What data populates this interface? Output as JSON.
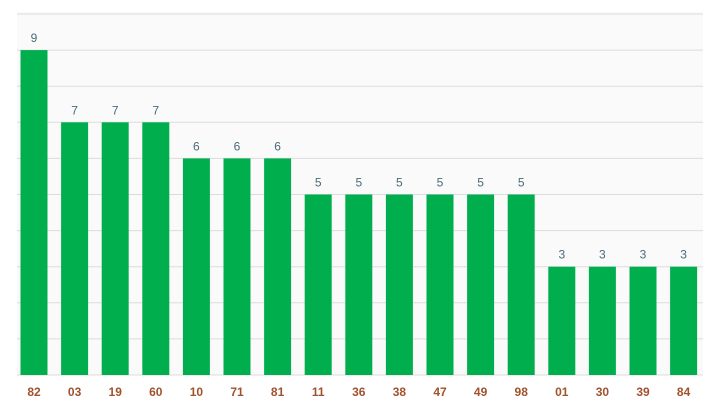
{
  "chart_data": {
    "type": "bar",
    "categories": [
      "82",
      "03",
      "19",
      "60",
      "10",
      "71",
      "81",
      "11",
      "36",
      "38",
      "47",
      "49",
      "98",
      "01",
      "30",
      "39",
      "84"
    ],
    "values": [
      9,
      7,
      7,
      7,
      6,
      6,
      6,
      5,
      5,
      5,
      5,
      5,
      5,
      3,
      3,
      3,
      3
    ],
    "ylim": [
      0,
      9
    ],
    "grid": true,
    "colors": {
      "bar": "#00ae4d",
      "plot_background": "#fafafa",
      "grid": "#dcdcdc",
      "value_label": "#4a6b78",
      "category_label": "#a0522d"
    }
  }
}
